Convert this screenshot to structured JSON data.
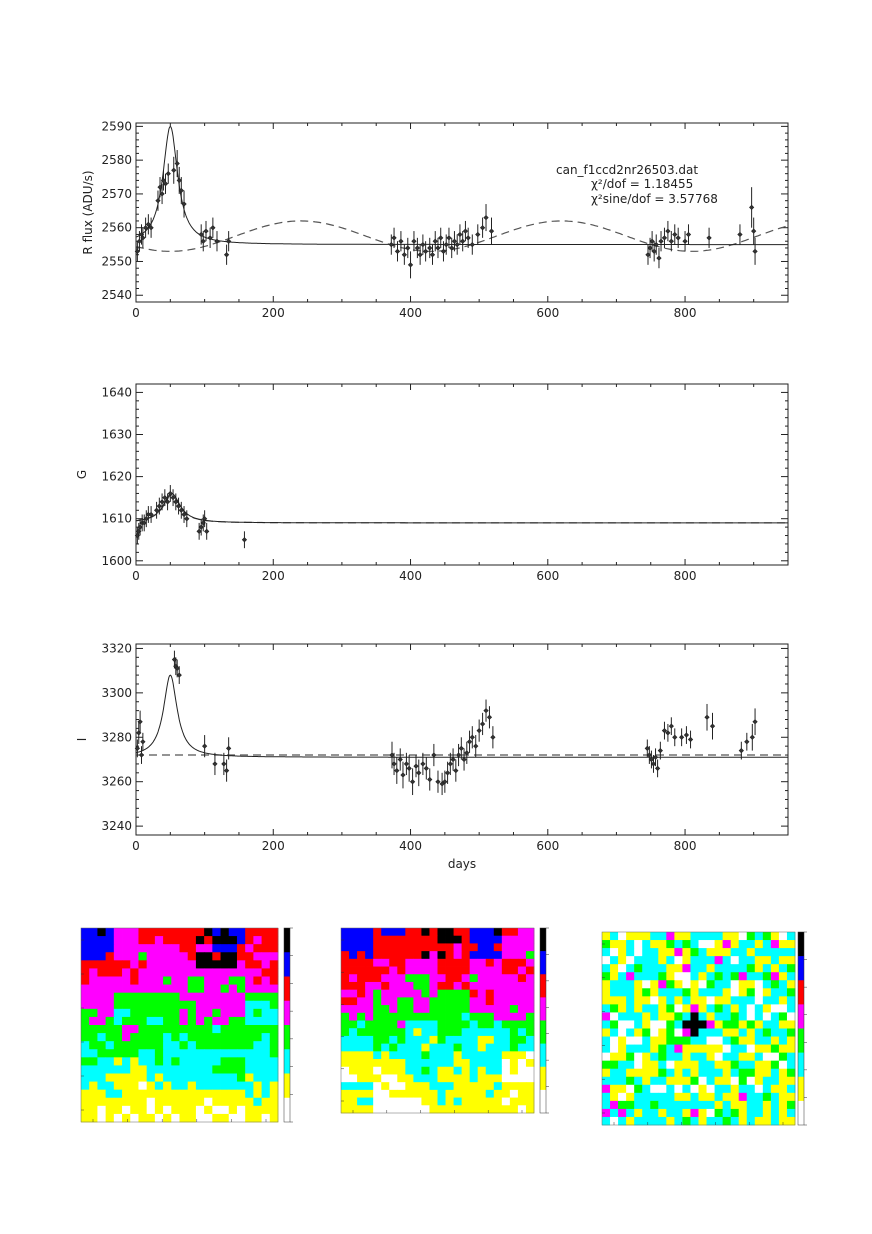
{
  "chart_data": [
    {
      "type": "scatter",
      "panel": "R",
      "ylabel": "R flux (ADU/s)",
      "xlabel": "",
      "xlim": [
        0,
        950
      ],
      "ylim": [
        2538,
        2591
      ],
      "xticks": [
        0,
        200,
        400,
        600,
        800
      ],
      "yticks": [
        2540,
        2550,
        2560,
        2570,
        2580,
        2590
      ],
      "annotations": [
        "can_f1ccd2nr26503.dat",
        "χ²/dof = 1.18455",
        "χ²sine/dof = 3.57768"
      ],
      "baseline": 2555,
      "peak": {
        "t0": 50,
        "amp": 35,
        "width": 13
      },
      "sine": {
        "mean": 2557.5,
        "amp": 4.5,
        "period": 380,
        "phase_x": 240
      },
      "points": [
        [
          2,
          2553,
          3
        ],
        [
          5,
          2556,
          3
        ],
        [
          8,
          2558,
          3
        ],
        [
          10,
          2557,
          3
        ],
        [
          14,
          2560,
          3
        ],
        [
          18,
          2561,
          3
        ],
        [
          22,
          2560,
          3
        ],
        [
          32,
          2568,
          3
        ],
        [
          35,
          2572,
          3
        ],
        [
          38,
          2570,
          3
        ],
        [
          40,
          2574,
          3
        ],
        [
          43,
          2573,
          3
        ],
        [
          47,
          2576,
          3
        ],
        [
          55,
          2577,
          4
        ],
        [
          60,
          2579,
          4
        ],
        [
          63,
          2574,
          4
        ],
        [
          66,
          2571,
          4
        ],
        [
          70,
          2567,
          4
        ],
        [
          95,
          2558,
          3
        ],
        [
          98,
          2556,
          3
        ],
        [
          102,
          2559,
          3
        ],
        [
          108,
          2557,
          3
        ],
        [
          112,
          2560,
          3
        ],
        [
          118,
          2556,
          3
        ],
        [
          132,
          2552,
          3
        ],
        [
          135,
          2556,
          3
        ],
        [
          372,
          2555,
          3
        ],
        [
          376,
          2557,
          3
        ],
        [
          381,
          2553,
          3
        ],
        [
          386,
          2556,
          3
        ],
        [
          391,
          2552,
          3
        ],
        [
          396,
          2554,
          3
        ],
        [
          400,
          2549,
          4
        ],
        [
          405,
          2556,
          3
        ],
        [
          410,
          2554,
          3
        ],
        [
          414,
          2552,
          3
        ],
        [
          418,
          2555,
          3
        ],
        [
          422,
          2553,
          3
        ],
        [
          428,
          2554,
          3
        ],
        [
          432,
          2552,
          3
        ],
        [
          436,
          2556,
          3
        ],
        [
          440,
          2554,
          3
        ],
        [
          444,
          2557,
          3
        ],
        [
          448,
          2553,
          3
        ],
        [
          452,
          2555,
          3
        ],
        [
          456,
          2557,
          3
        ],
        [
          460,
          2554,
          3
        ],
        [
          464,
          2556,
          3
        ],
        [
          468,
          2555,
          3
        ],
        [
          472,
          2558,
          3
        ],
        [
          476,
          2556,
          3
        ],
        [
          480,
          2559,
          3
        ],
        [
          484,
          2557,
          3
        ],
        [
          490,
          2555,
          3
        ],
        [
          498,
          2558,
          3
        ],
        [
          505,
          2560,
          3
        ],
        [
          510,
          2563,
          4
        ],
        [
          518,
          2559,
          4
        ],
        [
          746,
          2552,
          3
        ],
        [
          749,
          2554,
          3
        ],
        [
          752,
          2556,
          3
        ],
        [
          755,
          2553,
          3
        ],
        [
          758,
          2555,
          3
        ],
        [
          762,
          2551,
          3
        ],
        [
          765,
          2556,
          3
        ],
        [
          770,
          2557,
          3
        ],
        [
          775,
          2559,
          3
        ],
        [
          780,
          2556,
          3
        ],
        [
          785,
          2558,
          3
        ],
        [
          790,
          2557,
          3
        ],
        [
          800,
          2556,
          3
        ],
        [
          805,
          2558,
          3
        ],
        [
          835,
          2557,
          3
        ],
        [
          880,
          2558,
          3
        ],
        [
          897,
          2566,
          6
        ],
        [
          900,
          2559,
          4
        ],
        [
          902,
          2553,
          4
        ]
      ]
    },
    {
      "type": "scatter",
      "panel": "G",
      "ylabel": "G",
      "xlabel": "",
      "xlim": [
        0,
        950
      ],
      "ylim": [
        1599,
        1642
      ],
      "xticks": [
        0,
        200,
        400,
        600,
        800
      ],
      "yticks": [
        1600,
        1610,
        1620,
        1630,
        1640
      ],
      "baseline": 1609,
      "peak": {
        "t0": 52,
        "amp": 7,
        "width": 15
      },
      "points": [
        [
          2,
          1606,
          2
        ],
        [
          4,
          1607,
          2
        ],
        [
          6,
          1608,
          2
        ],
        [
          9,
          1609,
          2
        ],
        [
          12,
          1609,
          2
        ],
        [
          15,
          1610,
          2
        ],
        [
          18,
          1611,
          2
        ],
        [
          22,
          1611,
          2
        ],
        [
          30,
          1612,
          2
        ],
        [
          34,
          1613,
          2
        ],
        [
          38,
          1614,
          2
        ],
        [
          42,
          1615,
          2
        ],
        [
          46,
          1614,
          2
        ],
        [
          50,
          1616,
          2
        ],
        [
          54,
          1615,
          2
        ],
        [
          58,
          1614,
          2
        ],
        [
          62,
          1613,
          2
        ],
        [
          66,
          1612,
          2
        ],
        [
          70,
          1611,
          2
        ],
        [
          74,
          1610,
          2
        ],
        [
          92,
          1607,
          2
        ],
        [
          95,
          1608,
          2
        ],
        [
          98,
          1609,
          2
        ],
        [
          100,
          1610,
          2
        ],
        [
          103,
          1607,
          2
        ],
        [
          158,
          1605,
          2
        ]
      ]
    },
    {
      "type": "scatter",
      "panel": "I",
      "ylabel": "I",
      "xlabel": "days",
      "xlim": [
        0,
        950
      ],
      "ylim": [
        3236,
        3322
      ],
      "xticks": [
        0,
        200,
        400,
        600,
        800
      ],
      "yticks": [
        3240,
        3260,
        3280,
        3300,
        3320
      ],
      "baseline": 3271,
      "dashed": 3272,
      "peak": {
        "t0": 50,
        "amp": 37,
        "width": 12
      },
      "points": [
        [
          2,
          3275,
          4
        ],
        [
          4,
          3282,
          5
        ],
        [
          6,
          3287,
          5
        ],
        [
          8,
          3272,
          4
        ],
        [
          10,
          3278,
          4
        ],
        [
          56,
          3315,
          4
        ],
        [
          58,
          3312,
          4
        ],
        [
          60,
          3311,
          4
        ],
        [
          63,
          3308,
          4
        ],
        [
          100,
          3276,
          5
        ],
        [
          115,
          3268,
          5
        ],
        [
          128,
          3268,
          5
        ],
        [
          132,
          3265,
          5
        ],
        [
          135,
          3275,
          5
        ],
        [
          373,
          3272,
          6
        ],
        [
          376,
          3268,
          5
        ],
        [
          380,
          3265,
          6
        ],
        [
          385,
          3270,
          5
        ],
        [
          389,
          3263,
          6
        ],
        [
          394,
          3268,
          5
        ],
        [
          398,
          3266,
          6
        ],
        [
          403,
          3260,
          6
        ],
        [
          408,
          3267,
          5
        ],
        [
          412,
          3264,
          6
        ],
        [
          418,
          3268,
          5
        ],
        [
          423,
          3266,
          5
        ],
        [
          428,
          3261,
          5
        ],
        [
          434,
          3272,
          5
        ],
        [
          440,
          3260,
          5
        ],
        [
          446,
          3259,
          5
        ],
        [
          450,
          3260,
          5
        ],
        [
          454,
          3264,
          5
        ],
        [
          458,
          3268,
          5
        ],
        [
          462,
          3270,
          5
        ],
        [
          466,
          3265,
          5
        ],
        [
          470,
          3272,
          5
        ],
        [
          474,
          3275,
          5
        ],
        [
          478,
          3270,
          5
        ],
        [
          482,
          3273,
          5
        ],
        [
          486,
          3278,
          5
        ],
        [
          490,
          3280,
          5
        ],
        [
          495,
          3276,
          5
        ],
        [
          500,
          3283,
          5
        ],
        [
          505,
          3286,
          5
        ],
        [
          510,
          3292,
          5
        ],
        [
          515,
          3289,
          5
        ],
        [
          520,
          3280,
          5
        ],
        [
          745,
          3275,
          4
        ],
        [
          748,
          3272,
          4
        ],
        [
          751,
          3270,
          4
        ],
        [
          754,
          3268,
          4
        ],
        [
          757,
          3271,
          4
        ],
        [
          760,
          3266,
          4
        ],
        [
          764,
          3274,
          4
        ],
        [
          770,
          3283,
          4
        ],
        [
          775,
          3282,
          4
        ],
        [
          780,
          3285,
          4
        ],
        [
          785,
          3280,
          4
        ],
        [
          795,
          3280,
          4
        ],
        [
          802,
          3281,
          4
        ],
        [
          808,
          3279,
          4
        ],
        [
          832,
          3289,
          6
        ],
        [
          840,
          3285,
          6
        ],
        [
          882,
          3274,
          4
        ],
        [
          890,
          3278,
          4
        ],
        [
          898,
          3280,
          6
        ],
        [
          902,
          3287,
          6
        ]
      ]
    },
    {
      "type": "heatmap",
      "panel": "image-1",
      "colorbar": [
        "#000000",
        "#0000ff",
        "#ff0000",
        "#ff00ff",
        "#00ff00",
        "#00ffff",
        "#ffff00",
        "#ffffff"
      ]
    },
    {
      "type": "heatmap",
      "panel": "image-2",
      "colorbar": [
        "#000000",
        "#0000ff",
        "#ff0000",
        "#ff00ff",
        "#00ff00",
        "#00ffff",
        "#ffff00",
        "#ffffff"
      ]
    },
    {
      "type": "heatmap",
      "panel": "image-3",
      "colorbar": [
        "#000000",
        "#0000ff",
        "#ff0000",
        "#ff00ff",
        "#00ff00",
        "#00ffff",
        "#ffff00",
        "#ffffff"
      ]
    }
  ]
}
